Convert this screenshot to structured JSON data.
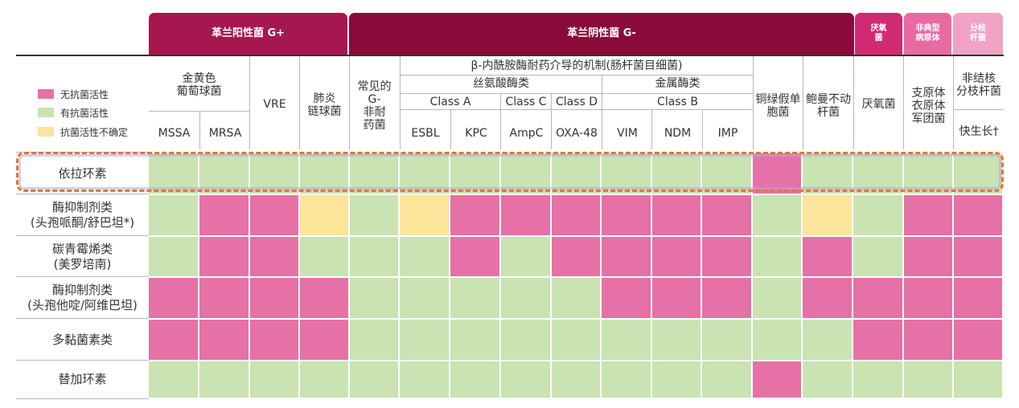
{
  "colors": {
    "none": "#e671a7",
    "active": "#c9e3b2",
    "uncertain": "#fce49b"
  },
  "legend": [
    {
      "label": "无抗菌活性",
      "color": "#e671a7"
    },
    {
      "label": "有抗菌活性",
      "color": "#c9e3b2"
    },
    {
      "label": "抗菌活性不确定",
      "color": "#fce49b"
    }
  ],
  "groups": {
    "gram_pos": {
      "label": "革兰阳性菌 G+",
      "color": "#a6174f"
    },
    "gram_neg": {
      "label": "革兰阴性菌 G-",
      "color": "#8a0a3a"
    },
    "anaerobe": {
      "label": "厌氧\n菌",
      "color": "#d12a74"
    },
    "atypical": {
      "label": "非典型\n病原体",
      "color": "#e96aa3"
    },
    "mycobact": {
      "label": "分枝\n杆菌",
      "color": "#f1a3c6"
    }
  },
  "subheaders": {
    "staph": "金黄色\n葡萄球菌",
    "vre": "VRE",
    "strep": "肺炎\n链球菌",
    "common_gneg": "常见的\nG-\n非耐\n药菌",
    "beta_lactamase": "β-内酰胺酶耐药介导的机制(肠杆菌目细菌)",
    "serine": "丝氨酸酶类",
    "metallo": "金属酶类",
    "class_a": "Class A",
    "class_c": "Class C",
    "class_d": "Class D",
    "class_b": "Class B",
    "pseudomonas": "铜绿假单\n胞菌",
    "acinetobacter": "鲍曼不动\n杆菌",
    "anaerobe": "厌氧菌",
    "atypical": "支原体\n衣原体\n军团菌",
    "ntm": "非结核\n分枝杆菌",
    "rapid": "快生长†"
  },
  "leaf_columns": [
    "MSSA",
    "MRSA",
    "",
    "",
    "",
    "ESBL",
    "KPC",
    "AmpC",
    "OXA-48",
    "VIM",
    "NDM",
    "IMP",
    "",
    "",
    "",
    "",
    ""
  ],
  "rows": [
    {
      "name": "依拉环素",
      "cells": [
        "active",
        "active",
        "active",
        "active",
        "active",
        "active",
        "active",
        "active",
        "active",
        "active",
        "active",
        "active",
        "none",
        "active",
        "active",
        "active",
        "active"
      ]
    },
    {
      "name": "酶抑制剂类\n(头孢哌酮/舒巴坦*)",
      "cells": [
        "active",
        "none",
        "none",
        "uncertain",
        "active",
        "uncertain",
        "none",
        "none",
        "none",
        "none",
        "none",
        "none",
        "active",
        "uncertain",
        "active",
        "none",
        "none"
      ]
    },
    {
      "name": "碳青霉烯类\n(美罗培南)",
      "cells": [
        "active",
        "none",
        "none",
        "active",
        "active",
        "active",
        "none",
        "active",
        "none",
        "none",
        "none",
        "none",
        "active",
        "none",
        "active",
        "none",
        "none"
      ]
    },
    {
      "name": "酶抑制剂类\n(头孢他啶/阿维巴坦)",
      "cells": [
        "none",
        "none",
        "none",
        "none",
        "active",
        "active",
        "active",
        "active",
        "active",
        "none",
        "none",
        "none",
        "active",
        "none",
        "none",
        "none",
        "none"
      ]
    },
    {
      "name": "多黏菌素类",
      "cells": [
        "none",
        "none",
        "none",
        "none",
        "active",
        "active",
        "active",
        "active",
        "active",
        "active",
        "active",
        "active",
        "active",
        "active",
        "none",
        "none",
        "none"
      ]
    },
    {
      "name": "替加环素",
      "cells": [
        "active",
        "active",
        "active",
        "active",
        "active",
        "active",
        "active",
        "active",
        "active",
        "active",
        "active",
        "active",
        "none",
        "active",
        "active",
        "active",
        "active"
      ]
    }
  ]
}
